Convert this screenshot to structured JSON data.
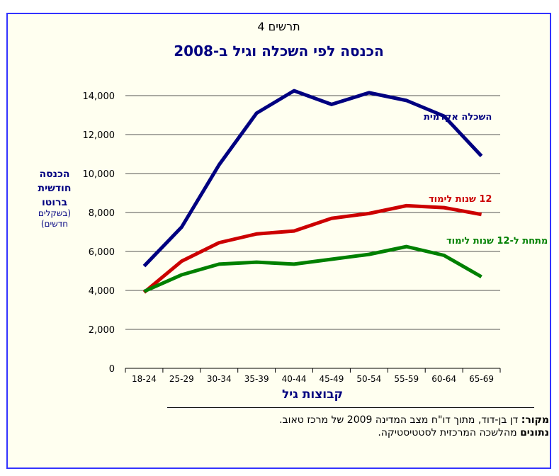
{
  "figure_number": "תרשים 4",
  "chart_data": {
    "type": "line",
    "title": "הכנסה לפי השכלה וגיל ב-2008",
    "xlabel": "קבוצות גיל",
    "ylabel": "הכנסה חודשית ברוטו",
    "ylabel_unit": "(בשקלים חדשים)",
    "categories": [
      "18-24",
      "25-29",
      "30-34",
      "35-39",
      "40-44",
      "45-49",
      "50-54",
      "55-59",
      "60-64",
      "65-69"
    ],
    "ylim": [
      0,
      14000
    ],
    "yticks": [
      0,
      2000,
      4000,
      6000,
      8000,
      10000,
      12000,
      14000
    ],
    "ytick_labels": [
      "0",
      "2,000",
      "4,000",
      "6,000",
      "8,000",
      "10,000",
      "12,000",
      "14,000"
    ],
    "grid": true,
    "series": [
      {
        "name": "השכלה אקדמית",
        "color": "#000080",
        "values": [
          5250,
          7250,
          10450,
          13100,
          14250,
          13550,
          14150,
          13750,
          12950,
          10900
        ]
      },
      {
        "name": "12 שנות לימוד",
        "color": "#cc0000",
        "values": [
          3900,
          5500,
          6450,
          6900,
          7050,
          7700,
          7950,
          8350,
          8250,
          7900
        ]
      },
      {
        "name": "מתחת ל-12 שנות לימוד",
        "color": "#008000",
        "values": [
          3950,
          4800,
          5350,
          5450,
          5350,
          5600,
          5850,
          6250,
          5800,
          4700
        ]
      }
    ]
  },
  "source": {
    "label": "מקור:",
    "text": " דן בן-דוד, מתוך דו\"ח מצב המדינה 2009 של מרכז טאוב.",
    "data_label": "נתונים",
    "data_text": " מהלשכה המרכזית לסטטיסטיקה."
  }
}
